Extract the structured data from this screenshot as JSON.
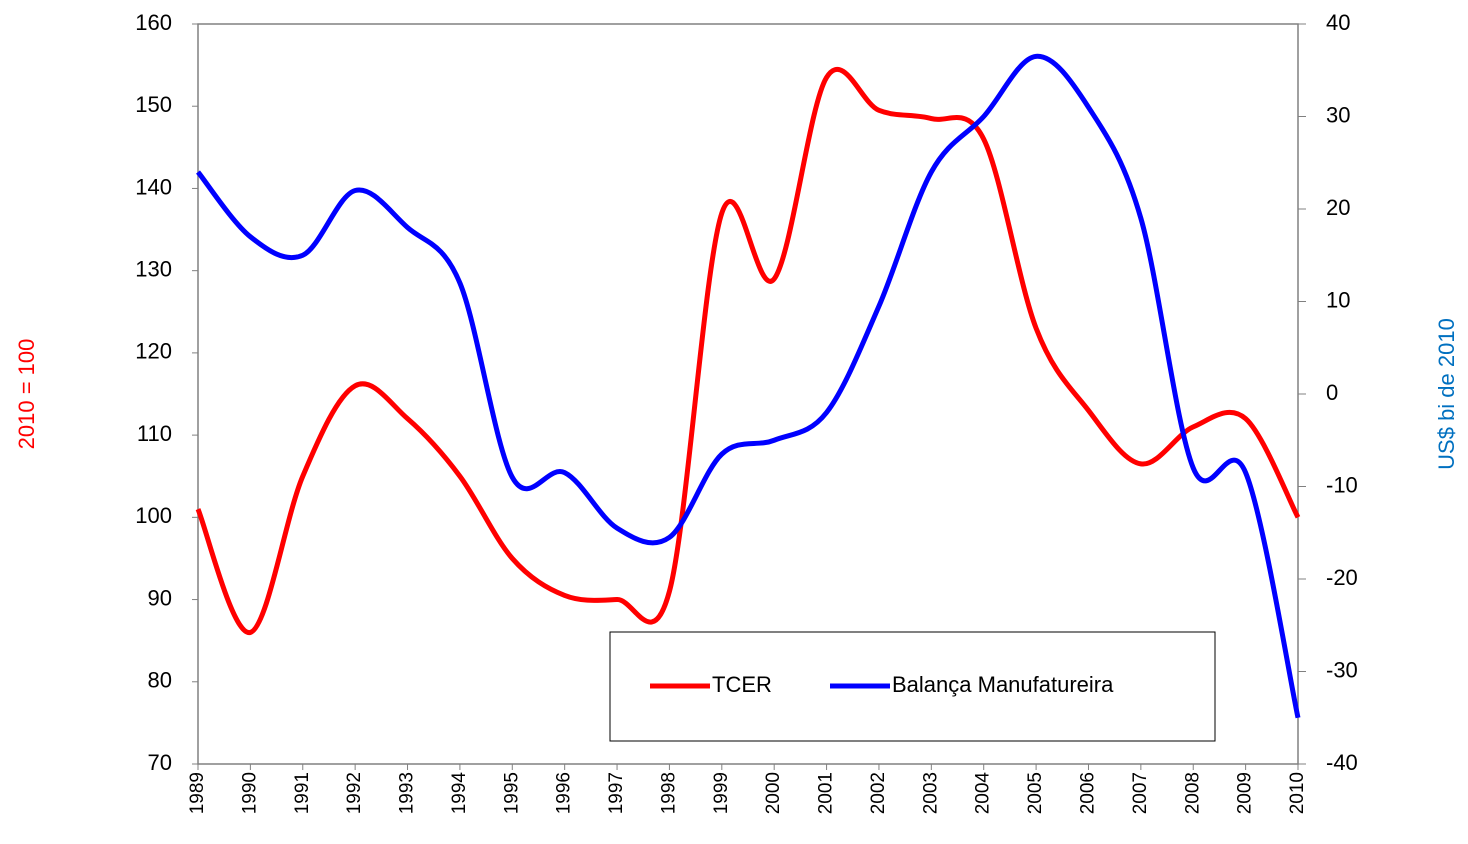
{
  "chart_data": {
    "type": "line",
    "categories": [
      "1989",
      "1990",
      "1991",
      "1992",
      "1993",
      "1994",
      "1995",
      "1996",
      "1997",
      "1998",
      "1999",
      "2000",
      "2001",
      "2002",
      "2003",
      "2004",
      "2005",
      "2006",
      "2007",
      "2008",
      "2009",
      "2010"
    ],
    "y_label": "2010 = 100",
    "y2_label": "US$  bi de 2010",
    "y2_label_color": "#0070c0",
    "ylim": [
      70,
      160
    ],
    "yticks": [
      70,
      80,
      90,
      100,
      110,
      120,
      130,
      140,
      150,
      160
    ],
    "y2lim": [
      -40,
      40
    ],
    "y2ticks": [
      -40,
      -30,
      -20,
      -10,
      0,
      10,
      20,
      30,
      40
    ],
    "legend": "bottom-right",
    "series": [
      {
        "name": "TCER",
        "color": "#ff0000",
        "values": [
          101,
          86,
          105,
          116,
          112,
          105,
          95,
          90.5,
          90,
          91,
          137,
          129,
          153.5,
          149.5,
          148.5,
          146,
          123,
          113,
          106.5,
          111,
          112,
          100
        ]
      },
      {
        "name": "Balança Manufatureira",
        "color": "#0000ff",
        "axis": "y2",
        "values": [
          24,
          17,
          15,
          22,
          18,
          12,
          -9,
          -8.5,
          -14.5,
          -15.5,
          -6.5,
          -5,
          -2,
          9.5,
          24,
          30,
          36.5,
          31,
          19,
          -8,
          -8.5,
          -35
        ]
      }
    ]
  }
}
